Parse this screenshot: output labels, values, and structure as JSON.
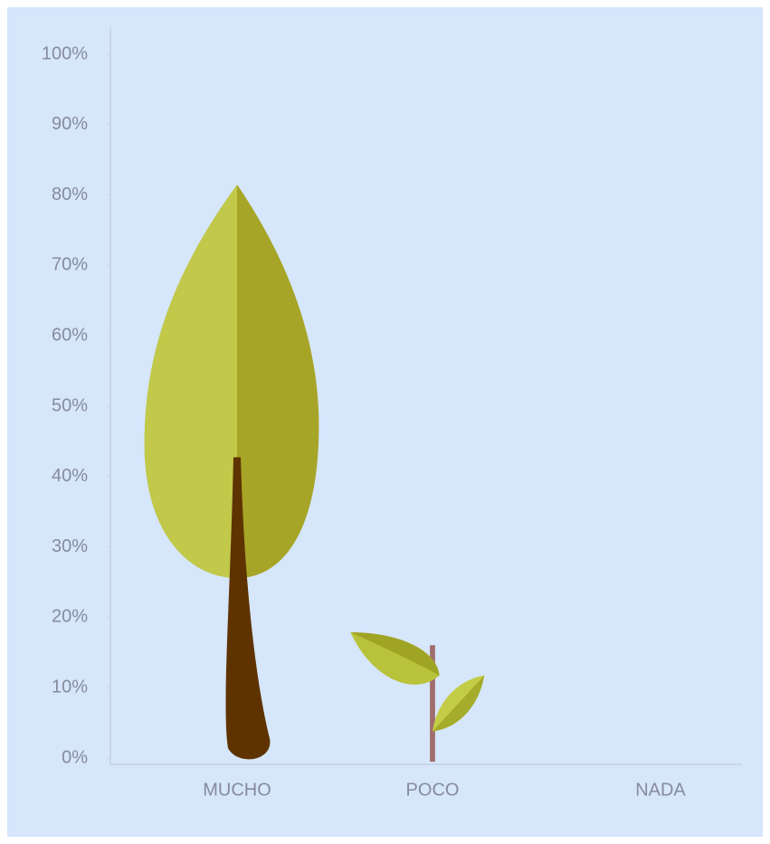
{
  "chart_data": {
    "type": "pictograph",
    "categories": [
      "MUCHO",
      "POCO",
      "NADA"
    ],
    "values": [
      82,
      19,
      0
    ],
    "ylim": [
      0,
      100
    ],
    "yticks": [
      {
        "value": 0,
        "label": "0%"
      },
      {
        "value": 10,
        "label": "10%"
      },
      {
        "value": 20,
        "label": "20%"
      },
      {
        "value": 30,
        "label": "30%"
      },
      {
        "value": 40,
        "label": "40%"
      },
      {
        "value": 50,
        "label": "50%"
      },
      {
        "value": 60,
        "label": "60%"
      },
      {
        "value": 70,
        "label": "70%"
      },
      {
        "value": 80,
        "label": "80%"
      },
      {
        "value": 90,
        "label": "90%"
      },
      {
        "value": 100,
        "label": "100%"
      }
    ]
  }
}
